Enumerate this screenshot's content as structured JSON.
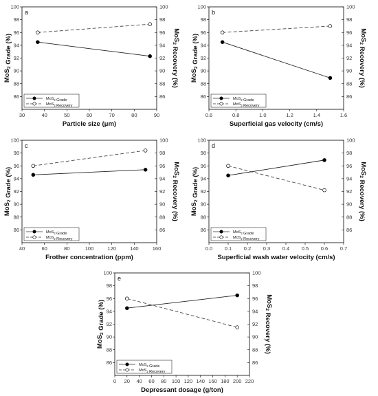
{
  "figure": {
    "left_axis_label": "MoS₂ Grade (%)",
    "right_axis_label": "MoS₂ Recovery (%)"
  },
  "chart_data": [
    {
      "type": "line",
      "panel_label": "a",
      "xlabel": "Particle size (μm)",
      "ylabel": "MoS₂ Grade (%)",
      "y2label": "MoS₂ Recovery (%)",
      "xlim": [
        30,
        90
      ],
      "xticks": [
        30,
        40,
        50,
        60,
        70,
        80,
        90
      ],
      "ylim": [
        84,
        100
      ],
      "yticks": [
        86,
        88,
        90,
        92,
        94,
        96,
        98,
        100
      ],
      "y2lim": [
        84,
        100
      ],
      "y2ticks": [
        86,
        88,
        90,
        92,
        94,
        96,
        98,
        100
      ],
      "grid": false,
      "legend_position": "bottom-left",
      "series": [
        {
          "name": "MoS₂ Grade",
          "axis": "left",
          "style": "solid-filled",
          "x": [
            37,
            87
          ],
          "y": [
            94.5,
            92.3
          ]
        },
        {
          "name": "MoS₂ Recovery",
          "axis": "right",
          "style": "dashed-open",
          "x": [
            37,
            87
          ],
          "y": [
            96.0,
            97.3
          ]
        }
      ]
    },
    {
      "type": "line",
      "panel_label": "b",
      "xlabel": "Superficial gas velocity (cm/s)",
      "ylabel": "MoS₂ Grade (%)",
      "y2label": "MoS₂ Recovery (%)",
      "xlim": [
        0.6,
        1.6
      ],
      "xticks": [
        0.6,
        0.8,
        1.0,
        1.2,
        1.4,
        1.6
      ],
      "ylim": [
        84,
        100
      ],
      "yticks": [
        86,
        88,
        90,
        92,
        94,
        96,
        98,
        100
      ],
      "y2lim": [
        84,
        100
      ],
      "y2ticks": [
        86,
        88,
        90,
        92,
        94,
        96,
        98,
        100
      ],
      "grid": false,
      "legend_position": "bottom-left",
      "series": [
        {
          "name": "MoS₂ Grade",
          "axis": "left",
          "style": "solid-filled",
          "x": [
            0.7,
            1.5
          ],
          "y": [
            94.5,
            88.9
          ]
        },
        {
          "name": "MoS₂ Recovery",
          "axis": "right",
          "style": "dashed-open",
          "x": [
            0.7,
            1.5
          ],
          "y": [
            96.0,
            97.0
          ]
        }
      ]
    },
    {
      "type": "line",
      "panel_label": "c",
      "xlabel": "Frother concentration (ppm)",
      "ylabel": "MoS₂ Grade (%)",
      "y2label": "MoS₂ Recovery (%)",
      "xlim": [
        40,
        160
      ],
      "xticks": [
        40,
        60,
        80,
        100,
        120,
        140,
        160
      ],
      "ylim": [
        84,
        100
      ],
      "yticks": [
        86,
        88,
        90,
        92,
        94,
        96,
        98,
        100
      ],
      "y2lim": [
        84,
        100
      ],
      "y2ticks": [
        86,
        88,
        90,
        92,
        94,
        96,
        98,
        100
      ],
      "grid": false,
      "legend_position": "bottom-left",
      "series": [
        {
          "name": "MoS₂ Grade",
          "axis": "left",
          "style": "solid-filled",
          "x": [
            50,
            150
          ],
          "y": [
            94.6,
            95.4
          ]
        },
        {
          "name": "MoS₂ Recovery",
          "axis": "right",
          "style": "dashed-open",
          "x": [
            50,
            150
          ],
          "y": [
            96.0,
            98.4
          ]
        }
      ]
    },
    {
      "type": "line",
      "panel_label": "d",
      "xlabel": "Superficial wash water velocity (cm/s)",
      "ylabel": "MoS₂ Grade (%)",
      "y2label": "MoS₂ Recovery (%)",
      "xlim": [
        0.0,
        0.7
      ],
      "xticks": [
        0.0,
        0.1,
        0.2,
        0.3,
        0.4,
        0.5,
        0.6,
        0.7
      ],
      "ylim": [
        84,
        100
      ],
      "yticks": [
        86,
        88,
        90,
        92,
        94,
        96,
        98,
        100
      ],
      "y2lim": [
        84,
        100
      ],
      "y2ticks": [
        86,
        88,
        90,
        92,
        94,
        96,
        98,
        100
      ],
      "grid": false,
      "legend_position": "bottom-left",
      "series": [
        {
          "name": "MoS₂ Grade",
          "axis": "left",
          "style": "solid-filled",
          "x": [
            0.1,
            0.6
          ],
          "y": [
            94.5,
            96.9
          ]
        },
        {
          "name": "MoS₂ Recovery",
          "axis": "right",
          "style": "dashed-open",
          "x": [
            0.1,
            0.6
          ],
          "y": [
            96.0,
            92.2
          ]
        }
      ]
    },
    {
      "type": "line",
      "panel_label": "e",
      "xlabel": "Depressant dosage (g/ton)",
      "ylabel": "MoS₂ Grade (%)",
      "y2label": "MoS₂ Recovery (%)",
      "xlim": [
        0,
        220
      ],
      "xticks": [
        0,
        20,
        40,
        60,
        80,
        100,
        120,
        140,
        160,
        180,
        200,
        220
      ],
      "ylim": [
        84,
        100
      ],
      "yticks": [
        86,
        88,
        90,
        92,
        94,
        96,
        98,
        100
      ],
      "y2lim": [
        84,
        100
      ],
      "y2ticks": [
        86,
        88,
        90,
        92,
        94,
        96,
        98,
        100
      ],
      "grid": false,
      "legend_position": "bottom-left",
      "series": [
        {
          "name": "MoS₂ Grade",
          "axis": "left",
          "style": "solid-filled",
          "x": [
            20,
            200
          ],
          "y": [
            94.5,
            96.5
          ]
        },
        {
          "name": "MoS₂ Recovery",
          "axis": "right",
          "style": "dashed-open",
          "x": [
            20,
            200
          ],
          "y": [
            96.0,
            91.5
          ]
        }
      ]
    }
  ]
}
